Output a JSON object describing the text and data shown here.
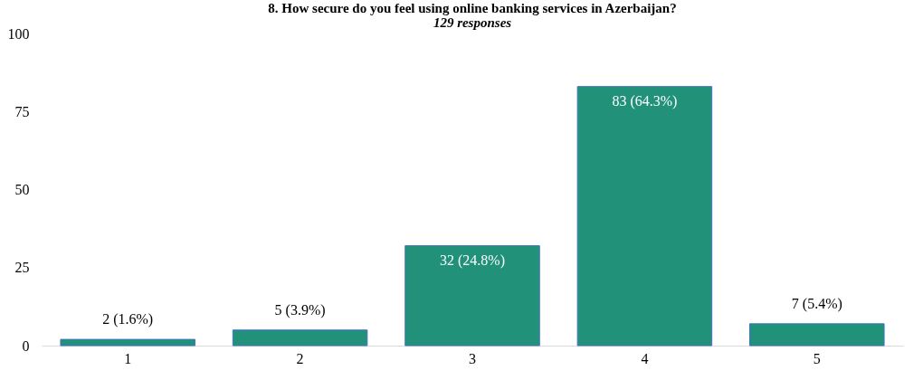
{
  "chart_data": {
    "type": "bar",
    "title": "8. How secure do you feel using online banking services in Azerbaijan?",
    "subtitle": "129 responses",
    "categories": [
      "1",
      "2",
      "3",
      "4",
      "5"
    ],
    "values": [
      2,
      5,
      32,
      83,
      7
    ],
    "value_labels": [
      "2 (1.6%)",
      "5 (3.9%)",
      "32 (24.8%)",
      "83 (64.3%)",
      "7 (5.4%)"
    ],
    "color": "#21917a",
    "ylim": [
      0,
      100
    ],
    "yticks": [
      0,
      25,
      50,
      75,
      100
    ],
    "grid": false
  }
}
